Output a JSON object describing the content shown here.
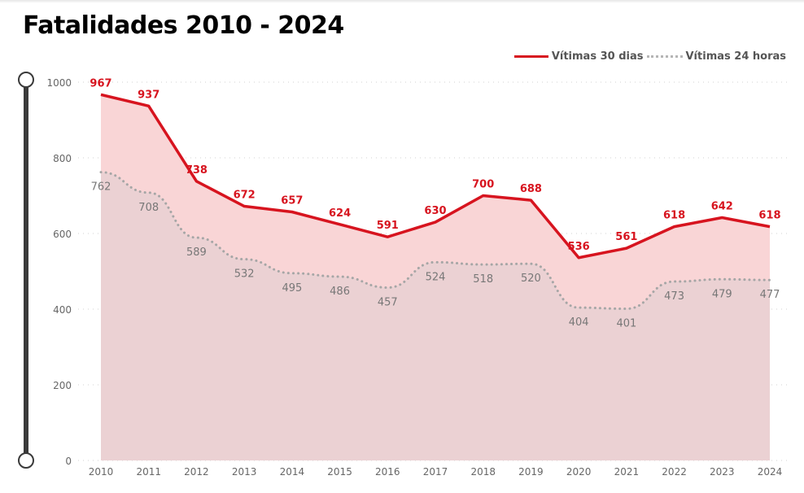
{
  "title": "Fatalidades 2010 - 2024",
  "colors": {
    "series_30d": "#d7141f",
    "series_24h": "#a6a6a6",
    "area_30d": "#f9d5d6",
    "area_24h": "#ebd1d3",
    "axis_text": "#666666",
    "label_24h": "#777777",
    "slider": "#3a3a3a",
    "gridline": "#d0d0d0"
  },
  "legend": {
    "items": [
      {
        "label": "Vítimas 30 dias",
        "style": "solid"
      },
      {
        "label": "Vítimas 24 horas",
        "style": "dotted"
      }
    ]
  },
  "slider": {
    "range_min": 0,
    "range_max": 1000
  },
  "chart_data": {
    "type": "line",
    "title": "Fatalidades 2010 - 2024",
    "xlabel": "",
    "ylabel": "",
    "ylim": [
      0,
      1000
    ],
    "yticks": [
      0,
      200,
      400,
      600,
      800,
      1000
    ],
    "grid": true,
    "legend_position": "top-right",
    "categories": [
      "2010",
      "2011",
      "2012",
      "2013",
      "2014",
      "2015",
      "2016",
      "2017",
      "2018",
      "2019",
      "2020",
      "2021",
      "2022",
      "2023",
      "2024"
    ],
    "series": [
      {
        "name": "Vítimas 30 dias",
        "style": "solid",
        "area": true,
        "values": [
          967,
          937,
          738,
          672,
          657,
          624,
          591,
          630,
          700,
          688,
          536,
          561,
          618,
          642,
          618
        ]
      },
      {
        "name": "Vítimas 24 horas",
        "style": "dotted",
        "area": true,
        "values": [
          762,
          708,
          589,
          532,
          495,
          486,
          457,
          524,
          518,
          520,
          404,
          401,
          473,
          479,
          477
        ]
      }
    ]
  }
}
